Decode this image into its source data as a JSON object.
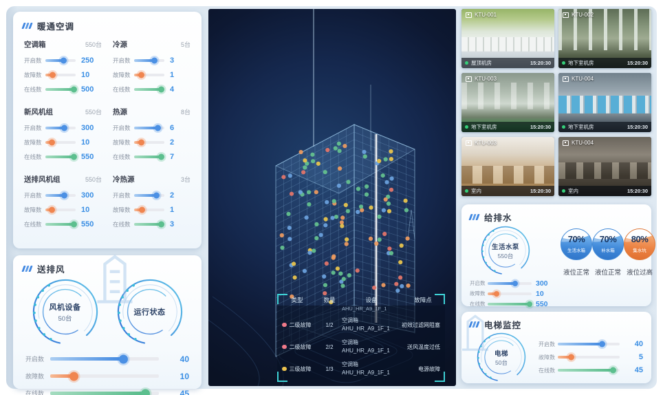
{
  "colors": {
    "accent_blue": "#3f8ee4",
    "accent_orange": "#f0915c",
    "accent_green": "#5bc08c",
    "value_text": "#3a8ee4",
    "teal_bracket": "#3ed2d6",
    "level2_dot": "#f07a8a",
    "level3_dot": "#ecc24e",
    "live_dot": "#35d07a",
    "dot_palette": [
      "#64c08e",
      "#6aa0dc",
      "#e8c44e",
      "#eb9a60",
      "#e2756a"
    ]
  },
  "hvac": {
    "title": "暖通空调",
    "groups": [
      {
        "name": "空调箱",
        "total": "550台",
        "metrics": [
          {
            "label": "开启数",
            "value": "250",
            "pct": 62
          },
          {
            "label": "故障数",
            "value": "10",
            "pct": 25
          },
          {
            "label": "在线数",
            "value": "500",
            "pct": 96
          }
        ]
      },
      {
        "name": "冷源",
        "total": "5台",
        "metrics": [
          {
            "label": "开启数",
            "value": "3",
            "pct": 68
          },
          {
            "label": "故障数",
            "value": "1",
            "pct": 25
          },
          {
            "label": "在线数",
            "value": "4",
            "pct": 92
          }
        ]
      },
      {
        "name": "新风机组",
        "total": "550台",
        "metrics": [
          {
            "label": "开启数",
            "value": "300",
            "pct": 64
          },
          {
            "label": "故障数",
            "value": "10",
            "pct": 22
          },
          {
            "label": "在线数",
            "value": "550",
            "pct": 96
          }
        ]
      },
      {
        "name": "热源",
        "total": "8台",
        "metrics": [
          {
            "label": "开启数",
            "value": "6",
            "pct": 80
          },
          {
            "label": "故障数",
            "value": "2",
            "pct": 25
          },
          {
            "label": "在线数",
            "value": "7",
            "pct": 92
          }
        ]
      },
      {
        "name": "送排风机组",
        "total": "550台",
        "metrics": [
          {
            "label": "开启数",
            "value": "300",
            "pct": 64
          },
          {
            "label": "故障数",
            "value": "10",
            "pct": 22
          },
          {
            "label": "在线数",
            "value": "550",
            "pct": 96
          }
        ]
      },
      {
        "name": "冷热源",
        "total": "3台",
        "metrics": [
          {
            "label": "开启数",
            "value": "2",
            "pct": 76
          },
          {
            "label": "故障数",
            "value": "1",
            "pct": 28
          },
          {
            "label": "在线数",
            "value": "3",
            "pct": 92
          }
        ]
      }
    ]
  },
  "fan": {
    "title": "送排风",
    "gauges": [
      {
        "label": "风机设备",
        "sub": "50台"
      },
      {
        "label": "运行状态",
        "sub": ""
      }
    ],
    "metrics": [
      {
        "label": "开启数",
        "value": "40",
        "pct": 68
      },
      {
        "label": "故障数",
        "value": "10",
        "pct": 22
      },
      {
        "label": "在线数",
        "value": "45",
        "pct": 88
      }
    ]
  },
  "stage": {
    "table": {
      "headers": [
        "类型",
        "数量",
        "设备",
        "故障点"
      ],
      "partial_device": "AHU_HR_A9_1F_1",
      "rows": [
        {
          "level": "二级故障",
          "count": "1/2",
          "device_type": "空调箱",
          "device_id": "AHU_HR_A9_1F_1",
          "fault": "初效过滤网阻塞"
        },
        {
          "level": "二级故障",
          "count": "2/2",
          "device_type": "空调箱",
          "device_id": "AHU_HR_A9_1F_1",
          "fault": "送风温度过低"
        },
        {
          "level": "三级故障",
          "count": "1/3",
          "device_type": "空调箱",
          "device_id": "AHU_HR_A9_1F_1",
          "fault": "电源故障"
        }
      ]
    }
  },
  "cameras": {
    "tiles": [
      {
        "id": "KTU-001",
        "location": "屋顶机房",
        "time": "15:20:30"
      },
      {
        "id": "KTU-002",
        "location": "地下室机房",
        "time": "15:20:30"
      },
      {
        "id": "KTU-003",
        "location": "地下室机房",
        "time": "15:20:30"
      },
      {
        "id": "KTU-004",
        "location": "地下室机房",
        "time": "15:20:30"
      },
      {
        "id": "KTU-003",
        "location": "室内",
        "time": "15:20:30"
      },
      {
        "id": "KTU-004",
        "location": "室内",
        "time": "15:20:30"
      }
    ]
  },
  "water": {
    "title": "给排水",
    "gauge": {
      "label": "生活水泵",
      "sub": "550台"
    },
    "tanks": [
      {
        "pct": "70%",
        "name": "生活水箱",
        "status": "液位正常",
        "theme": "blue"
      },
      {
        "pct": "70%",
        "name": "补水箱",
        "status": "液位正常",
        "theme": "blue"
      },
      {
        "pct": "80%",
        "name": "集水坑",
        "status": "液位过高",
        "theme": "orange"
      }
    ],
    "metrics": [
      {
        "label": "开启数",
        "value": "300",
        "pct": 62
      },
      {
        "label": "故障数",
        "value": "10",
        "pct": 20
      },
      {
        "label": "在线数",
        "value": "550",
        "pct": 95
      }
    ]
  },
  "elevator": {
    "title": "电梯监控",
    "gauge": {
      "label": "电梯",
      "sub": "50台"
    },
    "metrics": [
      {
        "label": "开启数",
        "value": "40",
        "pct": 72
      },
      {
        "label": "故障数",
        "value": "5",
        "pct": 22
      },
      {
        "label": "在线数",
        "value": "45",
        "pct": 90
      }
    ]
  }
}
